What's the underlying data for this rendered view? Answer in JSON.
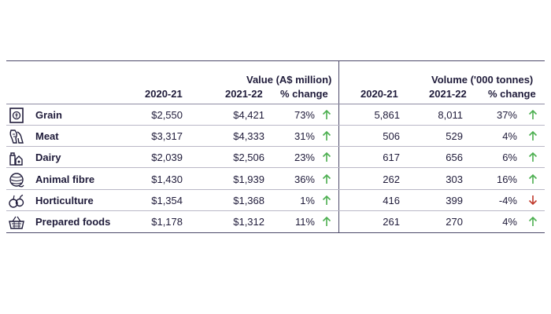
{
  "header": {
    "value_group": "Value (A$ million)",
    "volume_group": "Volume ('000 tonnes)",
    "columns": [
      "2020-21",
      "2021-22",
      "% change",
      "2020-21",
      "2021-22",
      "% change"
    ]
  },
  "rows": [
    {
      "name": "Grain",
      "icon": "grain-sack-icon",
      "v2021": "$2,550",
      "v2122": "$4,421",
      "vchg": "73%",
      "vdir": "up",
      "q2021": "5,861",
      "q2122": "8,011",
      "qchg": "37%",
      "qdir": "up"
    },
    {
      "name": "Meat",
      "icon": "meat-cuts-icon",
      "v2021": "$3,317",
      "v2122": "$4,333",
      "vchg": "31%",
      "vdir": "up",
      "q2021": "506",
      "q2122": "529",
      "qchg": "4%",
      "qdir": "up"
    },
    {
      "name": "Dairy",
      "icon": "dairy-bottle-icon",
      "v2021": "$2,039",
      "v2122": "$2,506",
      "vchg": "23%",
      "vdir": "up",
      "q2021": "617",
      "q2122": "656",
      "qchg": "6%",
      "qdir": "up"
    },
    {
      "name": "Animal fibre",
      "icon": "yarn-ball-icon",
      "v2021": "$1,430",
      "v2122": "$1,939",
      "vchg": "36%",
      "vdir": "up",
      "q2021": "262",
      "q2122": "303",
      "qchg": "16%",
      "qdir": "up"
    },
    {
      "name": "Horticulture",
      "icon": "fruit-vegetable-icon",
      "v2021": "$1,354",
      "v2122": "$1,368",
      "vchg": "1%",
      "vdir": "up",
      "q2021": "416",
      "q2122": "399",
      "qchg": "-4%",
      "qdir": "down"
    },
    {
      "name": "Prepared foods",
      "icon": "food-basket-icon",
      "v2021": "$1,178",
      "v2122": "$1,312",
      "vchg": "11%",
      "vdir": "up",
      "q2021": "261",
      "q2122": "270",
      "qchg": "4%",
      "qdir": "up"
    }
  ],
  "colors": {
    "up": "#4caf50",
    "down": "#c0392b",
    "text": "#1f1b3a"
  }
}
